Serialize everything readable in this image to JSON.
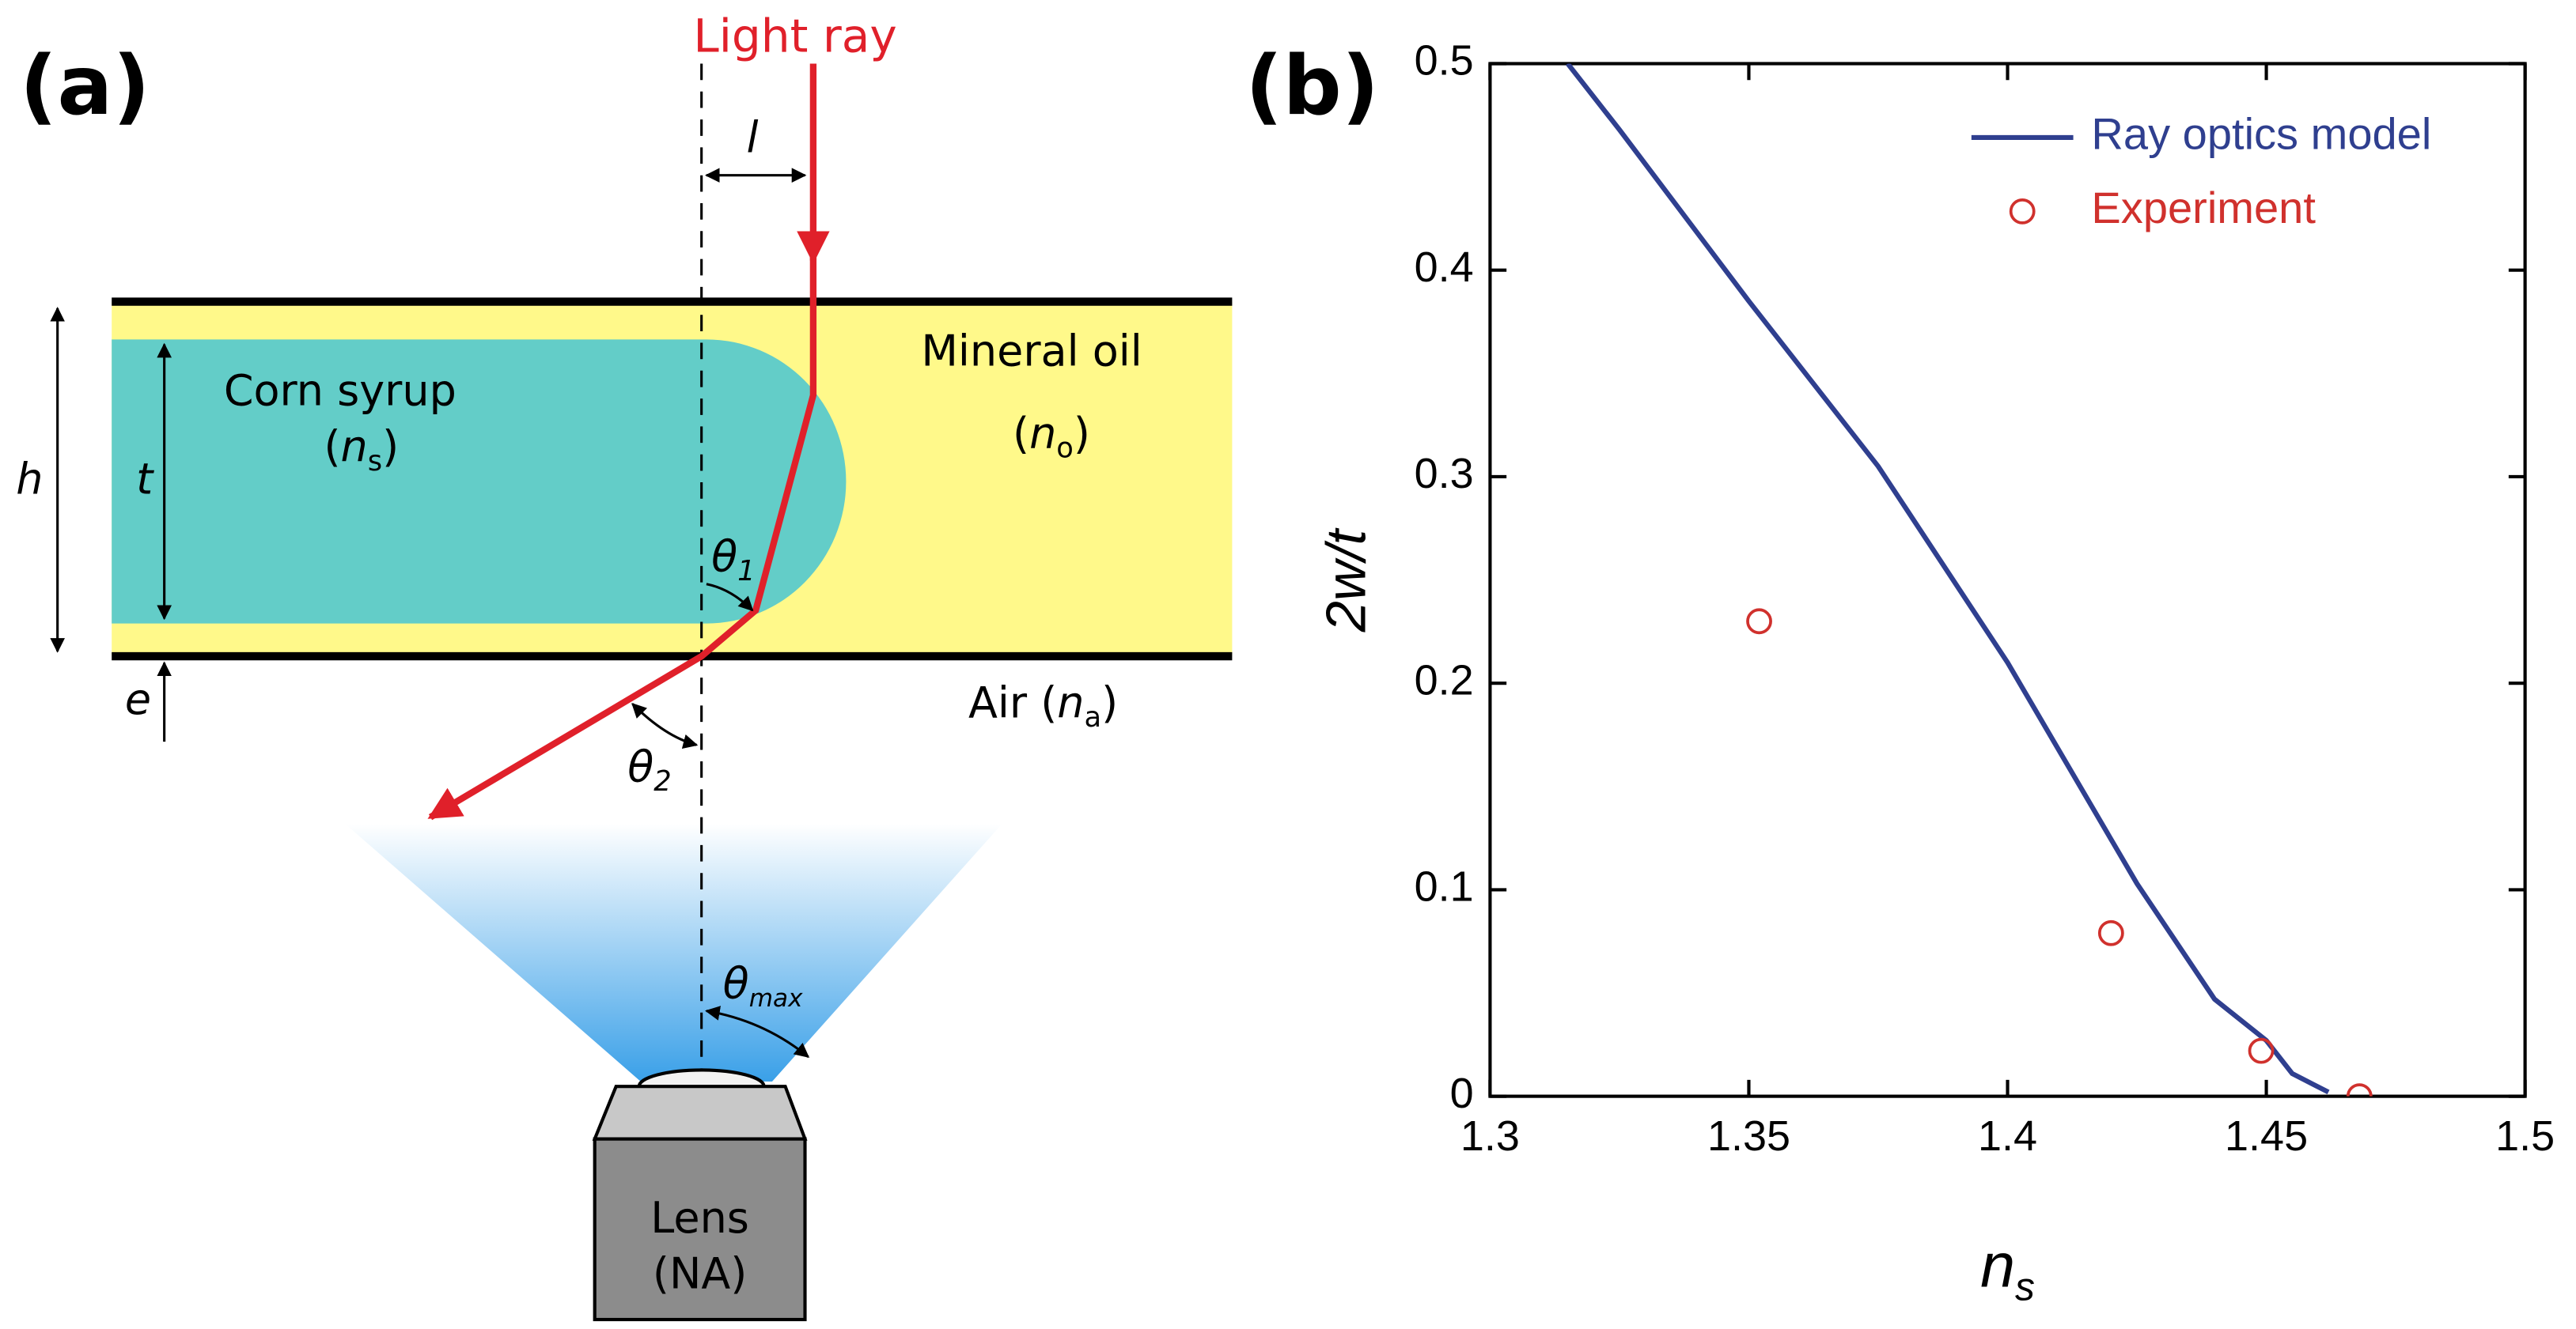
{
  "panel_a": {
    "label": "(a)",
    "light_ray": "Light ray",
    "l": "l",
    "h": "h",
    "t": "t",
    "e": "e",
    "corn_syrup": "Corn syrup",
    "corn_syrup_index": {
      "open": "(",
      "symbol": "n",
      "sub": "s",
      "close": ")"
    },
    "mineral_oil": "Mineral oil",
    "mineral_oil_index": {
      "open": "(",
      "symbol": "n",
      "sub": "o",
      "close": ")"
    },
    "air": {
      "open": "Air (",
      "symbol": "n",
      "sub": "a",
      "close": ")"
    },
    "theta1": {
      "symbol": "θ",
      "sub": "1"
    },
    "theta2": {
      "symbol": "θ",
      "sub": "2"
    },
    "theta_max": {
      "symbol": "θ",
      "sub": "max"
    },
    "lens": "Lens",
    "na": "(NA)"
  },
  "chart_data": {
    "type": "line",
    "panel_label": "(b)",
    "x_label": {
      "symbol": "n",
      "sub": "s"
    },
    "y_label": "2w/t",
    "xlim": [
      1.3,
      1.5
    ],
    "ylim": [
      0,
      0.5
    ],
    "xticks": [
      1.3,
      1.35,
      1.4,
      1.45,
      1.5
    ],
    "yticks": [
      0,
      0.1,
      0.2,
      0.3,
      0.4,
      0.5
    ],
    "legend": "upper right",
    "series": [
      {
        "name": "Ray optics model",
        "color": "#2f3f8f",
        "type": "line",
        "x": [
          1.315,
          1.325,
          1.35,
          1.375,
          1.4,
          1.425,
          1.44,
          1.45,
          1.455,
          1.462
        ],
        "values": [
          0.5,
          0.468,
          0.385,
          0.305,
          0.21,
          0.103,
          0.047,
          0.027,
          0.011,
          0.002
        ]
      },
      {
        "name": "Experiment",
        "color": "#d0312d",
        "type": "scatter",
        "marker": "open-circle",
        "x": [
          1.352,
          1.42,
          1.449,
          1.468
        ],
        "values": [
          0.23,
          0.079,
          0.022,
          0.0
        ]
      }
    ]
  }
}
